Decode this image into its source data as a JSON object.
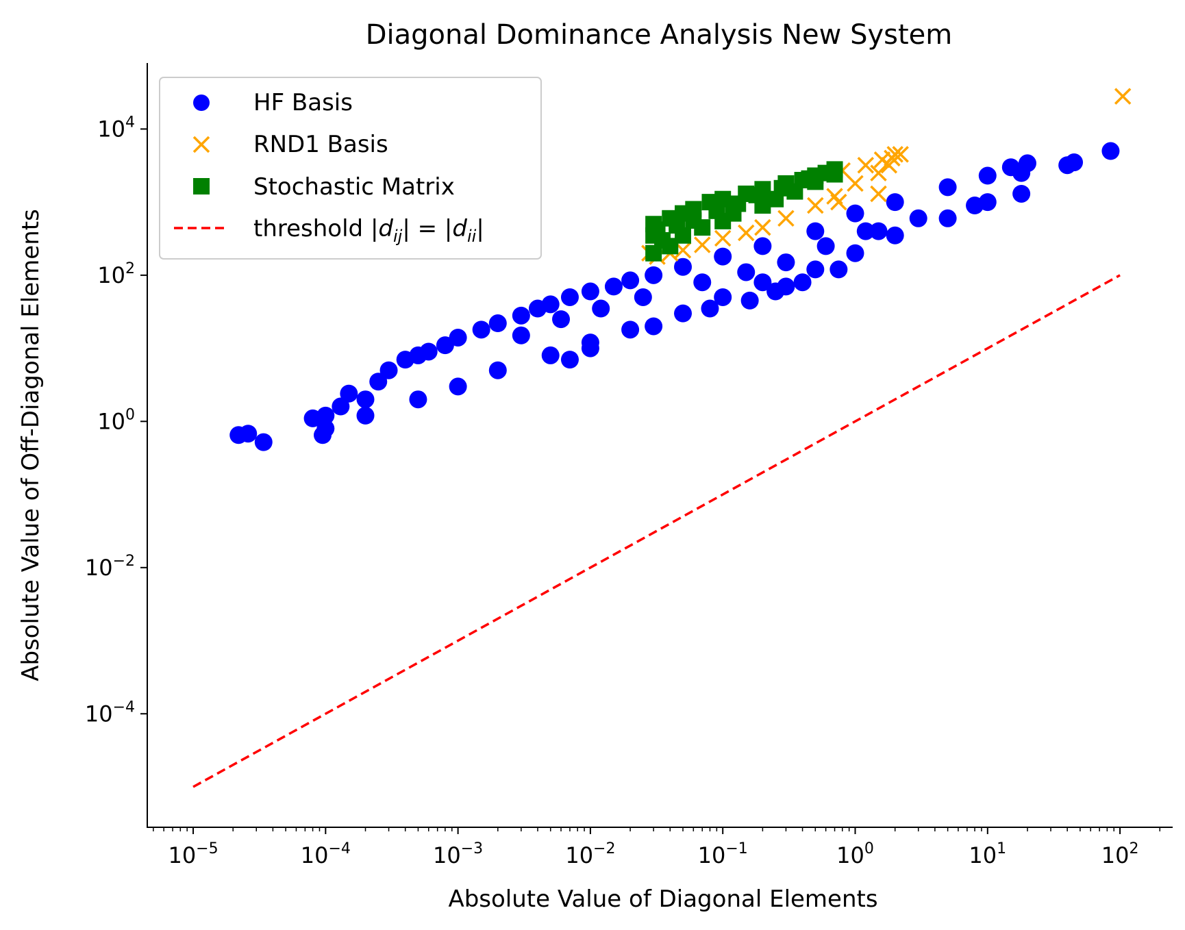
{
  "chart_data": {
    "type": "scatter",
    "title": "Diagonal Dominance Analysis New System",
    "xlabel": "Absolute Value of Diagonal Elements",
    "ylabel": "Absolute Value of Off-Diagonal Elements",
    "xscale": "log",
    "yscale": "log",
    "xlim": [
      4.5e-06,
      250
    ],
    "ylim": [
      2.8e-06,
      80000
    ],
    "grid": false,
    "legend_position": "upper-left",
    "x_ticks": [
      {
        "value": 1e-05,
        "base": "10",
        "exp": "−5"
      },
      {
        "value": 0.0001,
        "base": "10",
        "exp": "−4"
      },
      {
        "value": 0.001,
        "base": "10",
        "exp": "−3"
      },
      {
        "value": 0.01,
        "base": "10",
        "exp": "−2"
      },
      {
        "value": 0.1,
        "base": "10",
        "exp": "−1"
      },
      {
        "value": 1,
        "base": "10",
        "exp": "0"
      },
      {
        "value": 10,
        "base": "10",
        "exp": "1"
      },
      {
        "value": 100,
        "base": "10",
        "exp": "2"
      }
    ],
    "y_ticks": [
      {
        "value": 0.0001,
        "base": "10",
        "exp": "−4"
      },
      {
        "value": 0.01,
        "base": "10",
        "exp": "−2"
      },
      {
        "value": 1,
        "base": "10",
        "exp": "0"
      },
      {
        "value": 100,
        "base": "10",
        "exp": "2"
      },
      {
        "value": 10000,
        "base": "10",
        "exp": "4"
      }
    ],
    "series": [
      {
        "name": "HF Basis",
        "marker": "circle",
        "color": "#0000ff",
        "points": [
          [
            2.2e-05,
            0.65
          ],
          [
            2.6e-05,
            0.68
          ],
          [
            3.4e-05,
            0.52
          ],
          [
            8e-05,
            1.1
          ],
          [
            9.5e-05,
            0.65
          ],
          [
            0.0001,
            1.2
          ],
          [
            0.00013,
            1.6
          ],
          [
            0.00015,
            2.4
          ],
          [
            0.0002,
            2.0
          ],
          [
            0.00025,
            3.5
          ],
          [
            0.0003,
            5.0
          ],
          [
            0.0004,
            7.0
          ],
          [
            0.0005,
            8.0
          ],
          [
            0.0006,
            9.0
          ],
          [
            0.0008,
            11
          ],
          [
            0.001,
            14
          ],
          [
            0.0015,
            18
          ],
          [
            0.002,
            22
          ],
          [
            0.003,
            28
          ],
          [
            0.004,
            35
          ],
          [
            0.005,
            40
          ],
          [
            0.007,
            50
          ],
          [
            0.01,
            60
          ],
          [
            0.015,
            70
          ],
          [
            0.02,
            85
          ],
          [
            0.03,
            100
          ],
          [
            0.05,
            130
          ],
          [
            0.1,
            180
          ],
          [
            0.2,
            250
          ],
          [
            0.5,
            400
          ],
          [
            1,
            700
          ],
          [
            2,
            1000
          ],
          [
            5,
            1600
          ],
          [
            10,
            2300
          ],
          [
            15,
            3000
          ],
          [
            20,
            3400
          ],
          [
            40,
            3200
          ],
          [
            45,
            3500
          ],
          [
            85,
            5000
          ],
          [
            0.0001,
            0.8
          ],
          [
            0.0002,
            1.2
          ],
          [
            0.0005,
            2.0
          ],
          [
            0.001,
            3.0
          ],
          [
            0.002,
            5.0
          ],
          [
            0.005,
            8.0
          ],
          [
            0.01,
            12
          ],
          [
            0.02,
            18
          ],
          [
            0.05,
            30
          ],
          [
            0.1,
            50
          ],
          [
            0.2,
            80
          ],
          [
            0.5,
            120
          ],
          [
            1,
            200
          ],
          [
            2,
            350
          ],
          [
            5,
            600
          ],
          [
            10,
            1000
          ],
          [
            18,
            1300
          ],
          [
            18,
            2500
          ],
          [
            0.007,
            7.0
          ],
          [
            0.01,
            10
          ],
          [
            0.03,
            20
          ],
          [
            0.08,
            35
          ],
          [
            0.16,
            45
          ],
          [
            0.25,
            60
          ],
          [
            0.3,
            70
          ],
          [
            0.4,
            80
          ],
          [
            0.75,
            120
          ],
          [
            1.5,
            400
          ],
          [
            0.003,
            15
          ],
          [
            0.006,
            25
          ],
          [
            0.012,
            35
          ],
          [
            0.025,
            50
          ],
          [
            0.07,
            80
          ],
          [
            0.15,
            110
          ],
          [
            0.3,
            150
          ],
          [
            0.6,
            250
          ],
          [
            1.2,
            400
          ],
          [
            3,
            600
          ],
          [
            8,
            900
          ]
        ]
      },
      {
        "name": "RND1 Basis",
        "marker": "x",
        "color": "#ffa500",
        "points": [
          [
            0.028,
            200
          ],
          [
            0.03,
            350
          ],
          [
            0.032,
            180
          ],
          [
            0.035,
            250
          ],
          [
            0.04,
            200
          ],
          [
            0.05,
            220
          ],
          [
            0.07,
            260
          ],
          [
            0.1,
            320
          ],
          [
            0.15,
            380
          ],
          [
            0.2,
            450
          ],
          [
            0.3,
            600
          ],
          [
            0.5,
            900
          ],
          [
            0.7,
            1200
          ],
          [
            1.0,
            1800
          ],
          [
            1.5,
            2500
          ],
          [
            0.8,
            2700
          ],
          [
            1.2,
            3200
          ],
          [
            1.6,
            3800
          ],
          [
            1.9,
            4000
          ],
          [
            2.0,
            4500
          ],
          [
            2.2,
            4500
          ],
          [
            1.8,
            3200
          ],
          [
            0.75,
            1000
          ],
          [
            1.5,
            1300
          ],
          [
            105,
            28000
          ]
        ]
      },
      {
        "name": "Stochastic Matrix",
        "marker": "square",
        "color": "#008000",
        "points": [
          [
            0.03,
            200
          ],
          [
            0.03,
            500
          ],
          [
            0.035,
            300
          ],
          [
            0.04,
            600
          ],
          [
            0.04,
            250
          ],
          [
            0.05,
            700
          ],
          [
            0.05,
            350
          ],
          [
            0.06,
            800
          ],
          [
            0.07,
            450
          ],
          [
            0.08,
            1000
          ],
          [
            0.1,
            550
          ],
          [
            0.1,
            1100
          ],
          [
            0.12,
            700
          ],
          [
            0.15,
            1300
          ],
          [
            0.2,
            900
          ],
          [
            0.2,
            1500
          ],
          [
            0.25,
            1100
          ],
          [
            0.3,
            1800
          ],
          [
            0.35,
            1400
          ],
          [
            0.4,
            2000
          ],
          [
            0.5,
            2300
          ],
          [
            0.5,
            1900
          ],
          [
            0.6,
            2500
          ],
          [
            0.7,
            2800
          ],
          [
            0.7,
            2400
          ],
          [
            0.03,
            350
          ],
          [
            0.032,
            420
          ],
          [
            0.045,
            480
          ],
          [
            0.06,
            560
          ],
          [
            0.09,
            760
          ],
          [
            0.13,
            950
          ],
          [
            0.18,
            1250
          ],
          [
            0.28,
            1550
          ],
          [
            0.45,
            2100
          ]
        ]
      },
      {
        "name": "threshold |d_ij| = |d_ii|",
        "marker": "dashed-line",
        "color": "#ff0000",
        "x": [
          1e-05,
          100
        ],
        "y": [
          1e-05,
          100
        ]
      }
    ],
    "legend": [
      {
        "text": "HF Basis"
      },
      {
        "text": "RND1 Basis"
      },
      {
        "text": "Stochastic Matrix"
      },
      {
        "text_prefix": "threshold ",
        "d1": "d",
        "s1": "ij",
        "eq": " = ",
        "d2": "d",
        "s2": "ii"
      }
    ]
  }
}
